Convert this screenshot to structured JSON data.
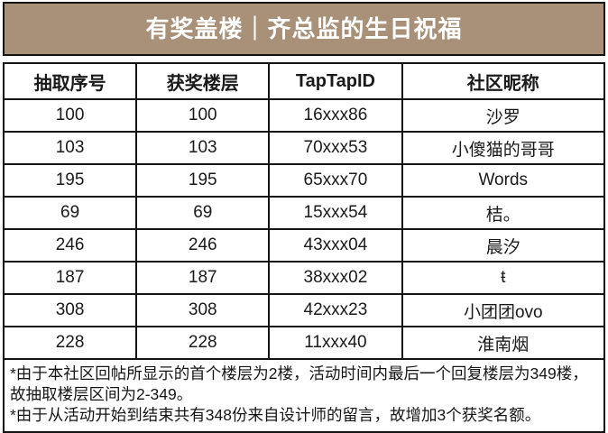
{
  "banner": {
    "title": "有奖盖楼｜齐总监的生日祝福",
    "background_color": "#a89178",
    "text_color": "#ffffff",
    "border_color": "#141414"
  },
  "table": {
    "columns": [
      "抽取序号",
      "获奖楼层",
      "TapTapID",
      "社区昵称"
    ],
    "rows": [
      [
        "100",
        "100",
        "16xxx86",
        "沙罗"
      ],
      [
        "103",
        "103",
        "70xxx53",
        "小傻猫的哥哥"
      ],
      [
        "195",
        "195",
        "65xxx70",
        "Words"
      ],
      [
        "69",
        "69",
        "15xxx54",
        "桔。"
      ],
      [
        "246",
        "246",
        "43xxx04",
        "晨汐"
      ],
      [
        "187",
        "187",
        "38xxx02",
        "ŧ"
      ],
      [
        "308",
        "308",
        "42xxx23",
        "小团团ovo"
      ],
      [
        "228",
        "228",
        "11xxx40",
        "淮南烟"
      ]
    ]
  },
  "footer": {
    "notes": [
      "*由于本社区回帖所显示的首个楼层为2楼，活动时间内最后一个回复楼层为349楼，故抽取楼层区间为2-349。",
      "*由于从活动开始到结束共有348份来自设计师的留言，故增加3个获奖名额。"
    ]
  }
}
